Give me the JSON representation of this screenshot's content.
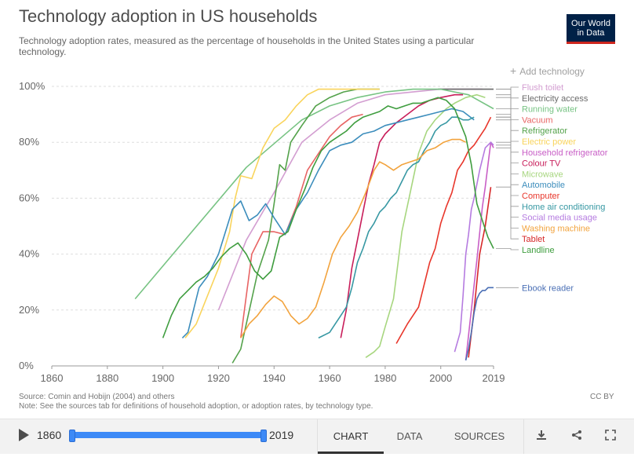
{
  "header": {
    "title": "Technology adoption in US households",
    "subtitle": "Technology adoption rates, measured as the percentage of households in the United States using a particular technology.",
    "logo_line1": "Our World",
    "logo_line2": "in Data",
    "add_technology": "Add technology",
    "logo_accent": "#ce261e",
    "logo_bg": "#002147"
  },
  "footer": {
    "source": "Source: Comin and Hobijn (2004) and others",
    "note": "Note: See the sources tab for definitions of household adoption, or adoption rates, by technology type.",
    "license": "CC BY"
  },
  "controls": {
    "start_year": "1860",
    "end_year": "2019",
    "tabs": [
      "CHART",
      "DATA",
      "SOURCES"
    ],
    "active_tab": "CHART",
    "icons": [
      "download-icon",
      "share-icon",
      "fullscreen-icon"
    ],
    "accent": "#3d8af7"
  },
  "chart_data": {
    "type": "line",
    "title": "Technology adoption in US households",
    "xlabel": "",
    "ylabel": "",
    "xlim": [
      1860,
      2019
    ],
    "ylim": [
      0,
      100
    ],
    "x_ticks": [
      1860,
      1880,
      1900,
      1920,
      1940,
      1960,
      1980,
      2000,
      2019
    ],
    "y_ticks": [
      "0%",
      "20%",
      "40%",
      "60%",
      "80%",
      "100%"
    ],
    "y_tick_values": [
      0,
      20,
      40,
      60,
      80,
      100
    ],
    "grid": true,
    "series": [
      {
        "name": "Flush toilet",
        "color": "#d39ed1",
        "points": [
          [
            1920,
            20
          ],
          [
            1930,
            45
          ],
          [
            1940,
            62
          ],
          [
            1950,
            80
          ],
          [
            1960,
            88
          ],
          [
            1970,
            94
          ],
          [
            1980,
            97
          ],
          [
            1990,
            98
          ],
          [
            2000,
            99
          ],
          [
            2010,
            99
          ],
          [
            2015,
            99
          ]
        ]
      },
      {
        "name": "Electricity access",
        "color": "#6a6a6a",
        "points": [
          [
            1999,
            99
          ],
          [
            2019,
            99
          ]
        ]
      },
      {
        "name": "Running water",
        "color": "#77c383",
        "points": [
          [
            1890,
            24
          ],
          [
            1930,
            71
          ],
          [
            1950,
            88
          ],
          [
            1960,
            93
          ],
          [
            1970,
            96
          ],
          [
            1980,
            98
          ],
          [
            1990,
            99
          ],
          [
            2000,
            99
          ],
          [
            2010,
            97
          ],
          [
            2019,
            92
          ]
        ]
      },
      {
        "name": "Vacuum",
        "color": "#e86464",
        "points": [
          [
            1928,
            10
          ],
          [
            1932,
            40
          ],
          [
            1936,
            48
          ],
          [
            1940,
            48
          ],
          [
            1944,
            47
          ],
          [
            1948,
            57
          ],
          [
            1952,
            70
          ],
          [
            1956,
            76
          ],
          [
            1960,
            82
          ],
          [
            1964,
            86
          ],
          [
            1968,
            89
          ],
          [
            1972,
            90
          ]
        ]
      },
      {
        "name": "Refrigerator",
        "color": "#54a24b",
        "points": [
          [
            1925,
            1
          ],
          [
            1928,
            6
          ],
          [
            1930,
            15
          ],
          [
            1934,
            33
          ],
          [
            1938,
            45
          ],
          [
            1940,
            58
          ],
          [
            1942,
            72
          ],
          [
            1944,
            70
          ],
          [
            1946,
            80
          ],
          [
            1950,
            86
          ],
          [
            1955,
            93
          ],
          [
            1960,
            96
          ],
          [
            1965,
            98
          ],
          [
            1970,
            99
          ],
          [
            1978,
            99
          ]
        ]
      },
      {
        "name": "Electric power",
        "color": "#f9d45c",
        "points": [
          [
            1908,
            10
          ],
          [
            1912,
            15
          ],
          [
            1916,
            25
          ],
          [
            1920,
            35
          ],
          [
            1924,
            48
          ],
          [
            1926,
            60
          ],
          [
            1928,
            68
          ],
          [
            1932,
            67
          ],
          [
            1936,
            78
          ],
          [
            1940,
            85
          ],
          [
            1944,
            88
          ],
          [
            1948,
            93
          ],
          [
            1952,
            97
          ],
          [
            1956,
            99
          ],
          [
            1960,
            99
          ],
          [
            1970,
            99
          ],
          [
            1978,
            99
          ]
        ]
      },
      {
        "name": "Household refrigerator",
        "color": "#c85ec6",
        "points": [
          [
            2009,
            2
          ],
          [
            2011,
            20
          ],
          [
            2013,
            38
          ],
          [
            2015,
            57
          ],
          [
            2016,
            64
          ],
          [
            2017,
            72
          ],
          [
            2018,
            80
          ],
          [
            2019,
            78
          ]
        ]
      },
      {
        "name": "Colour TV",
        "color": "#c81e5a",
        "points": [
          [
            1964,
            10
          ],
          [
            1966,
            20
          ],
          [
            1968,
            35
          ],
          [
            1970,
            45
          ],
          [
            1972,
            55
          ],
          [
            1974,
            65
          ],
          [
            1976,
            72
          ],
          [
            1978,
            80
          ],
          [
            1980,
            83
          ],
          [
            1984,
            87
          ],
          [
            1988,
            90
          ],
          [
            1992,
            93
          ],
          [
            1996,
            95
          ],
          [
            2000,
            96
          ],
          [
            2005,
            97
          ],
          [
            2008,
            97
          ]
        ]
      },
      {
        "name": "Microwave",
        "color": "#a7d67f",
        "points": [
          [
            1973,
            3
          ],
          [
            1976,
            5
          ],
          [
            1978,
            7
          ],
          [
            1980,
            14
          ],
          [
            1983,
            24
          ],
          [
            1986,
            48
          ],
          [
            1989,
            62
          ],
          [
            1992,
            76
          ],
          [
            1995,
            84
          ],
          [
            1998,
            88
          ],
          [
            2002,
            92
          ],
          [
            2005,
            94
          ],
          [
            2009,
            96
          ],
          [
            2013,
            97
          ],
          [
            2016,
            96
          ]
        ]
      },
      {
        "name": "Automobile",
        "color": "#3c8dbc",
        "points": [
          [
            1907,
            10
          ],
          [
            1909,
            12
          ],
          [
            1911,
            20
          ],
          [
            1913,
            28
          ],
          [
            1916,
            32
          ],
          [
            1920,
            40
          ],
          [
            1925,
            56
          ],
          [
            1928,
            59
          ],
          [
            1931,
            52
          ],
          [
            1934,
            54
          ],
          [
            1937,
            58
          ],
          [
            1940,
            53
          ],
          [
            1944,
            47
          ],
          [
            1948,
            56
          ],
          [
            1952,
            62
          ],
          [
            1956,
            70
          ],
          [
            1960,
            77
          ],
          [
            1964,
            79
          ],
          [
            1968,
            80
          ],
          [
            1972,
            83
          ],
          [
            1976,
            84
          ],
          [
            1980,
            86
          ],
          [
            1984,
            87
          ],
          [
            1988,
            88
          ],
          [
            1992,
            89
          ],
          [
            1996,
            90
          ],
          [
            2000,
            91
          ],
          [
            2004,
            92
          ],
          [
            2008,
            91
          ],
          [
            2012,
            88
          ]
        ]
      },
      {
        "name": "Computer",
        "color": "#e8362b",
        "points": [
          [
            1984,
            8
          ],
          [
            1988,
            15
          ],
          [
            1992,
            21
          ],
          [
            1996,
            37
          ],
          [
            1998,
            42
          ],
          [
            2000,
            51
          ],
          [
            2002,
            57
          ],
          [
            2004,
            62
          ],
          [
            2006,
            70
          ],
          [
            2008,
            73
          ],
          [
            2010,
            77
          ],
          [
            2012,
            79
          ],
          [
            2014,
            82
          ],
          [
            2016,
            85
          ],
          [
            2018,
            89
          ]
        ]
      },
      {
        "name": "Home air conditioning",
        "color": "#3798a3",
        "points": [
          [
            1956,
            10
          ],
          [
            1960,
            12
          ],
          [
            1962,
            15
          ],
          [
            1964,
            18
          ],
          [
            1966,
            21
          ],
          [
            1968,
            28
          ],
          [
            1970,
            37
          ],
          [
            1972,
            42
          ],
          [
            1974,
            48
          ],
          [
            1976,
            51
          ],
          [
            1978,
            55
          ],
          [
            1980,
            57
          ],
          [
            1982,
            60
          ],
          [
            1984,
            62
          ],
          [
            1986,
            66
          ],
          [
            1988,
            70
          ],
          [
            1990,
            72
          ],
          [
            1992,
            73
          ],
          [
            1994,
            77
          ],
          [
            1996,
            80
          ],
          [
            1998,
            84
          ],
          [
            2000,
            86
          ],
          [
            2002,
            87
          ],
          [
            2004,
            89
          ],
          [
            2006,
            89
          ],
          [
            2008,
            88
          ],
          [
            2010,
            88
          ],
          [
            2012,
            89
          ]
        ]
      },
      {
        "name": "Social media usage",
        "color": "#b57be0",
        "points": [
          [
            2005,
            5
          ],
          [
            2007,
            12
          ],
          [
            2008,
            25
          ],
          [
            2009,
            40
          ],
          [
            2010,
            47
          ],
          [
            2011,
            56
          ],
          [
            2012,
            60
          ],
          [
            2013,
            65
          ],
          [
            2014,
            70
          ],
          [
            2015,
            74
          ],
          [
            2016,
            78
          ],
          [
            2017,
            79
          ],
          [
            2018,
            80
          ],
          [
            2019,
            79
          ]
        ]
      },
      {
        "name": "Washing machine",
        "color": "#f2a33d",
        "points": [
          [
            1928,
            10
          ],
          [
            1931,
            15
          ],
          [
            1934,
            18
          ],
          [
            1937,
            22
          ],
          [
            1940,
            25
          ],
          [
            1943,
            23
          ],
          [
            1946,
            18
          ],
          [
            1949,
            15
          ],
          [
            1952,
            17
          ],
          [
            1955,
            21
          ],
          [
            1958,
            30
          ],
          [
            1961,
            40
          ],
          [
            1964,
            46
          ],
          [
            1967,
            50
          ],
          [
            1970,
            55
          ],
          [
            1973,
            62
          ],
          [
            1976,
            70
          ],
          [
            1978,
            73
          ],
          [
            1980,
            72
          ],
          [
            1983,
            70
          ],
          [
            1986,
            72
          ],
          [
            1989,
            73
          ],
          [
            1992,
            74
          ],
          [
            1995,
            77
          ],
          [
            1998,
            78
          ],
          [
            2001,
            80
          ],
          [
            2004,
            81
          ],
          [
            2007,
            81
          ],
          [
            2009,
            80
          ]
        ]
      },
      {
        "name": "Tablet",
        "color": "#d62728",
        "points": [
          [
            2010,
            3
          ],
          [
            2012,
            20
          ],
          [
            2014,
            40
          ],
          [
            2016,
            50
          ],
          [
            2018,
            64
          ]
        ]
      },
      {
        "name": "Landline",
        "color": "#3f9d3f",
        "points": [
          [
            1900,
            10
          ],
          [
            1903,
            18
          ],
          [
            1906,
            24
          ],
          [
            1909,
            27
          ],
          [
            1912,
            30
          ],
          [
            1915,
            32
          ],
          [
            1918,
            35
          ],
          [
            1921,
            39
          ],
          [
            1924,
            42
          ],
          [
            1927,
            44
          ],
          [
            1930,
            40
          ],
          [
            1933,
            34
          ],
          [
            1936,
            31
          ],
          [
            1939,
            34
          ],
          [
            1942,
            46
          ],
          [
            1945,
            48
          ],
          [
            1948,
            56
          ],
          [
            1951,
            63
          ],
          [
            1954,
            71
          ],
          [
            1957,
            77
          ],
          [
            1960,
            80
          ],
          [
            1963,
            82
          ],
          [
            1966,
            84
          ],
          [
            1969,
            87
          ],
          [
            1972,
            89
          ],
          [
            1975,
            90
          ],
          [
            1978,
            91
          ],
          [
            1981,
            93
          ],
          [
            1984,
            92
          ],
          [
            1987,
            93
          ],
          [
            1990,
            94
          ],
          [
            1993,
            94
          ],
          [
            1996,
            95
          ],
          [
            1999,
            96
          ],
          [
            2002,
            95
          ],
          [
            2005,
            92
          ],
          [
            2007,
            87
          ],
          [
            2009,
            82
          ],
          [
            2011,
            72
          ],
          [
            2013,
            58
          ],
          [
            2015,
            52
          ],
          [
            2017,
            46
          ],
          [
            2019,
            42
          ]
        ]
      },
      {
        "name": "Ebook reader",
        "color": "#4a6fb5",
        "points": [
          [
            2009,
            2
          ],
          [
            2010,
            6
          ],
          [
            2011,
            12
          ],
          [
            2012,
            19
          ],
          [
            2013,
            24
          ],
          [
            2014,
            26
          ],
          [
            2015,
            27
          ],
          [
            2016,
            27
          ],
          [
            2017,
            28
          ],
          [
            2018,
            28
          ],
          [
            2019,
            28
          ]
        ]
      }
    ]
  }
}
